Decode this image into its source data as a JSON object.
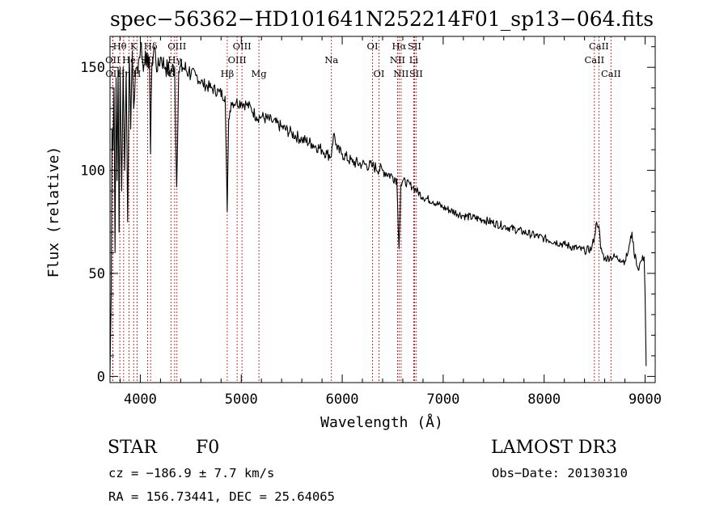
{
  "chart_data": {
    "type": "line",
    "title": "spec−56362−HD101641N252214F01_sp13−064.fits",
    "xlabel": "Wavelength (Å)",
    "ylabel": "Flux (relative)",
    "xlim": [
      3700,
      9100
    ],
    "ylim": [
      -3,
      165
    ],
    "x_ticks": [
      4000,
      5000,
      6000,
      7000,
      8000,
      9000
    ],
    "x_tick_labels": [
      "4000",
      "5000",
      "6000",
      "7000",
      "8000",
      "9000"
    ],
    "y_ticks": [
      0,
      50,
      100,
      150
    ],
    "y_tick_labels": [
      "0",
      "50",
      "100",
      "150"
    ],
    "series": [
      {
        "name": "flux",
        "x": [
          3700,
          3712,
          3720,
          3730,
          3740,
          3750,
          3760,
          3770,
          3780,
          3790,
          3800,
          3815,
          3830,
          3845,
          3860,
          3875,
          3890,
          3905,
          3920,
          3935,
          3950,
          3970,
          3990,
          4010,
          4030,
          4050,
          4070,
          4090,
          4101,
          4115,
          4140,
          4170,
          4200,
          4250,
          4300,
          4340,
          4360,
          4380,
          4420,
          4480,
          4550,
          4620,
          4700,
          4780,
          4840,
          4861,
          4875,
          4900,
          4950,
          5000,
          5050,
          5100,
          5150,
          5200,
          5300,
          5400,
          5500,
          5600,
          5700,
          5800,
          5850,
          5893,
          5900,
          5920,
          5950,
          6000,
          6100,
          6200,
          6300,
          6400,
          6500,
          6540,
          6563,
          6580,
          6600,
          6700,
          6800,
          6900,
          7000,
          7200,
          7400,
          7600,
          7800,
          8000,
          8200,
          8400,
          8470,
          8500,
          8520,
          8542,
          8560,
          8600,
          8662,
          8700,
          8750,
          8800,
          8830,
          8850,
          8870,
          8890,
          8910,
          8930,
          8960,
          8990,
          9000,
          9010
        ],
        "values": [
          1,
          40,
          120,
          110,
          140,
          60,
          145,
          95,
          150,
          70,
          150,
          90,
          150,
          100,
          148,
          75,
          155,
          120,
          158,
          130,
          145,
          150,
          155,
          162,
          148,
          158,
          150,
          155,
          108,
          152,
          160,
          148,
          155,
          150,
          148,
          150,
          92,
          148,
          150,
          148,
          146,
          142,
          140,
          138,
          136,
          80,
          125,
          133,
          133,
          133,
          132,
          130,
          126,
          126,
          124,
          121,
          118,
          115,
          113,
          110,
          108,
          107,
          112,
          118,
          110,
          108,
          104,
          103,
          102,
          100,
          97,
          96,
          62,
          93,
          95,
          92,
          87,
          85,
          82,
          78,
          76,
          73,
          70,
          67,
          64,
          61,
          62,
          68,
          75,
          73,
          62,
          57,
          58,
          58,
          57,
          56,
          60,
          65,
          70,
          60,
          57,
          52,
          56,
          58,
          40,
          5
        ]
      }
    ],
    "spectral_lines": [
      {
        "label": "Hθ",
        "wavelength": 3797,
        "row": 0
      },
      {
        "label": "OII",
        "wavelength": 3727,
        "row": 1
      },
      {
        "label": "OII",
        "wavelength": 3729,
        "row": 2
      },
      {
        "label": "Hη",
        "wavelength": 3835,
        "row": 2
      },
      {
        "label": "K",
        "wavelength": 3934,
        "row": 0
      },
      {
        "label": "He",
        "wavelength": 3889,
        "row": 1
      },
      {
        "label": "H",
        "wavelength": 3968,
        "row": 2
      },
      {
        "label": "SII",
        "wavelength": 4072,
        "row": 1
      },
      {
        "label": "Hδ",
        "wavelength": 4102,
        "row": 0
      },
      {
        "label": "OIII",
        "wavelength": 4363,
        "row": 0
      },
      {
        "label": "Hγ",
        "wavelength": 4340,
        "row": 1
      },
      {
        "label": "G",
        "wavelength": 4304,
        "row": 2
      },
      {
        "label": "Hβ",
        "wavelength": 4861,
        "row": 2
      },
      {
        "label": "OIII",
        "wavelength": 4959,
        "row": 1
      },
      {
        "label": "OIII",
        "wavelength": 5007,
        "row": 0
      },
      {
        "label": "Mg",
        "wavelength": 5175,
        "row": 2
      },
      {
        "label": "Na",
        "wavelength": 5893,
        "row": 1
      },
      {
        "label": "OI",
        "wavelength": 6300,
        "row": 0
      },
      {
        "label": "OI",
        "wavelength": 6364,
        "row": 2
      },
      {
        "label": "Hα",
        "wavelength": 6563,
        "row": 0
      },
      {
        "label": "NII",
        "wavelength": 6548,
        "row": 1
      },
      {
        "label": "NII",
        "wavelength": 6583,
        "row": 2
      },
      {
        "label": "SII",
        "wavelength": 6716,
        "row": 0
      },
      {
        "label": "Li",
        "wavelength": 6708,
        "row": 1
      },
      {
        "label": "SII",
        "wavelength": 6731,
        "row": 2
      },
      {
        "label": "CaII",
        "wavelength": 8542,
        "row": 0
      },
      {
        "label": "CaII",
        "wavelength": 8498,
        "row": 1
      },
      {
        "label": "CaII",
        "wavelength": 8662,
        "row": 2
      }
    ]
  },
  "info": {
    "object_class": "STAR",
    "subclass": "F0",
    "survey": "LAMOST DR3",
    "redshift": "cz = −186.9 ± 7.7 km/s",
    "obs_date": "Obs−Date: 20130310",
    "coords": "RA = 156.73441, DEC =  25.64065"
  },
  "colors": {
    "line_marker": "#b22222",
    "spectrum": "#000000",
    "axes": "#000000"
  }
}
